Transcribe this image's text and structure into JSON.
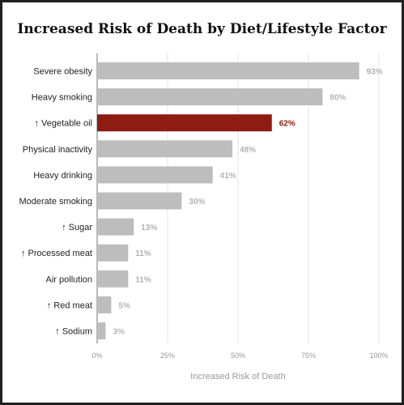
{
  "chart_data": {
    "type": "bar",
    "orientation": "horizontal",
    "title": "Increased Risk of Death by Diet/Lifestyle Factor",
    "xlabel": "Increased Risk of Death",
    "ylabel": "",
    "xlim": [
      0,
      100
    ],
    "x_ticks": [
      "0%",
      "25%",
      "50%",
      "75%",
      "100%"
    ],
    "grid": true,
    "categories": [
      "Severe obesity",
      "Heavy smoking",
      "↑ Vegetable oil",
      "Physical inactivity",
      "Heavy drinking",
      "Moderate smoking",
      "↑ Sugar",
      "↑ Processed meat",
      "Air pollution",
      "↑ Red meat",
      "↑ Sodium"
    ],
    "values": [
      93,
      80,
      62,
      48,
      41,
      30,
      13,
      11,
      11,
      5,
      3
    ],
    "value_labels": [
      "93%",
      "80%",
      "62%",
      "48%",
      "41%",
      "30%",
      "13%",
      "11%",
      "11%",
      "5%",
      "3%"
    ],
    "highlight_index": 2,
    "colors": {
      "bar": "#bdbdbd",
      "highlight": "#8e1c12",
      "grid": "#e3e3e3",
      "axis": "#888888"
    }
  }
}
